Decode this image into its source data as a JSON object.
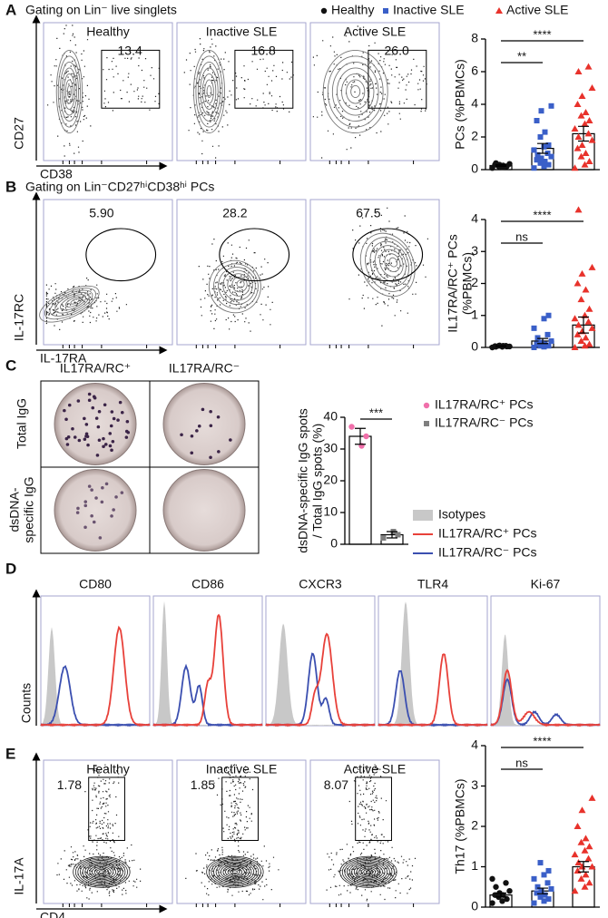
{
  "panel_labels": [
    "A",
    "B",
    "C",
    "D",
    "E"
  ],
  "panel_a": {
    "subtitle": "Gating on Lin⁻ live singlets",
    "plots": [
      {
        "title": "Healthy",
        "gate": "13.4"
      },
      {
        "title": "Inactive SLE",
        "gate": "16.8"
      },
      {
        "title": "Active SLE",
        "gate": "26.0"
      }
    ],
    "y_axis": "CD27",
    "x_axis": "CD38"
  },
  "panel_b": {
    "subtitle": "Gating on Lin⁻CD27ʰⁱCD38ʰⁱ PCs",
    "plots": [
      {
        "gate": "5.90"
      },
      {
        "gate": "28.2"
      },
      {
        "gate": "67.5"
      }
    ],
    "y_axis": "IL-17RC",
    "x_axis": "IL-17RA"
  },
  "panel_c": {
    "columns": [
      "IL17RA/RC⁺",
      "IL17RA/RC⁻"
    ],
    "rows": [
      [
        "Total IgG"
      ],
      [
        "dsDNA-",
        "specific IgG"
      ]
    ]
  },
  "panel_d": {
    "markers": [
      "CD80",
      "CD86",
      "CXCR3",
      "TLR4",
      "Ki-67"
    ],
    "y_axis": "Counts",
    "legend": [
      {
        "name": "Isotypes",
        "color": "#c8c8c8"
      },
      {
        "name": "IL17RA/RC⁺ PCs",
        "color": "#e8413a"
      },
      {
        "name": "IL17RA/RC⁻ PCs",
        "color": "#3b4fb0"
      }
    ]
  },
  "panel_e": {
    "plots": [
      {
        "title": "Healthy",
        "gate": "1.78"
      },
      {
        "title": "Inactive SLE",
        "gate": "1.85"
      },
      {
        "title": "Active SLE",
        "gate": "8.07"
      }
    ],
    "y_axis": "IL-17A",
    "x_axis": "CD4"
  },
  "chart_data": [
    {
      "type": "bar",
      "y_label": "PCs (%PBMCs)",
      "ylim": [
        0,
        8
      ],
      "yticks": [
        0,
        2,
        4,
        6,
        8
      ],
      "annotations": [
        "**",
        "****"
      ],
      "series": [
        {
          "name": "Healthy",
          "color": "#111111",
          "marker": "circle",
          "mean": 0.25,
          "sem": 0.04,
          "values": [
            0.1,
            0.15,
            0.2,
            0.2,
            0.25,
            0.3,
            0.3,
            0.35,
            0.4,
            0.2
          ]
        },
        {
          "name": "Inactive SLE",
          "color": "#3a5fc8",
          "marker": "square",
          "mean": 1.3,
          "sem": 0.3,
          "values": [
            0.1,
            0.2,
            0.3,
            0.4,
            0.5,
            0.6,
            0.7,
            0.8,
            0.9,
            1.0,
            1.2,
            1.4,
            1.5,
            2.0,
            2.3,
            3.0,
            3.6,
            3.9
          ]
        },
        {
          "name": "Active SLE",
          "color": "#e8322b",
          "marker": "triangle",
          "mean": 2.2,
          "sem": 0.45,
          "values": [
            0.1,
            0.3,
            0.5,
            0.8,
            1.0,
            1.3,
            1.5,
            1.8,
            2.0,
            2.2,
            2.5,
            2.8,
            3.0,
            3.3,
            3.5,
            4.0,
            4.5,
            5.0,
            6.0,
            6.3
          ]
        }
      ]
    },
    {
      "type": "bar",
      "y_label": [
        "IL17RA/RC⁺ PCs",
        "(%PBMCs)"
      ],
      "ylim": [
        0,
        4
      ],
      "yticks": [
        0,
        1,
        2,
        3,
        4
      ],
      "annotations": [
        "ns",
        "****"
      ],
      "series": [
        {
          "color": "#111111",
          "marker": "circle",
          "mean": 0.04,
          "sem": 0.01,
          "values": [
            0,
            0.02,
            0.03,
            0.05,
            0.05,
            0.04,
            0.06,
            0.03,
            0.02,
            0.05
          ]
        },
        {
          "color": "#3a5fc8",
          "marker": "square",
          "mean": 0.2,
          "sem": 0.08,
          "values": [
            0,
            0.02,
            0.05,
            0.05,
            0.1,
            0.1,
            0.15,
            0.2,
            0.3,
            0.4,
            0.6,
            0.9,
            1.0
          ]
        },
        {
          "color": "#e8322b",
          "marker": "triangle",
          "mean": 0.7,
          "sem": 0.25,
          "values": [
            0,
            0.05,
            0.1,
            0.2,
            0.3,
            0.4,
            0.5,
            0.6,
            0.7,
            0.8,
            0.9,
            1.0,
            1.2,
            1.5,
            1.8,
            2.0,
            2.3,
            2.5,
            4.3
          ]
        }
      ]
    },
    {
      "type": "bar",
      "y_label": [
        "dsDNA-specific IgG spots",
        "/ Total IgG spots (%)"
      ],
      "ylim": [
        0,
        40
      ],
      "yticks": [
        0,
        10,
        20,
        30,
        40
      ],
      "annotations": [
        "***"
      ],
      "series": [
        {
          "name": "IL17RA/RC⁺ PCs",
          "color": "#f06faa",
          "marker": "circle",
          "mean": 34,
          "sem": 2.5,
          "values": [
            37,
            31,
            34
          ]
        },
        {
          "name": "IL17RA/RC⁻ PCs",
          "color": "#7f7f7f",
          "marker": "square",
          "mean": 3,
          "sem": 1,
          "values": [
            2,
            4,
            3
          ]
        }
      ]
    },
    {
      "type": "bar",
      "y_label": "Th17 (%PBMCs)",
      "ylim": [
        0,
        4
      ],
      "yticks": [
        0,
        1,
        2,
        3,
        4
      ],
      "annotations": [
        "ns",
        "****"
      ],
      "series": [
        {
          "color": "#111111",
          "marker": "circle",
          "mean": 0.3,
          "sem": 0.05,
          "values": [
            0.1,
            0.15,
            0.2,
            0.25,
            0.3,
            0.3,
            0.35,
            0.4,
            0.5,
            0.6,
            0.7
          ]
        },
        {
          "color": "#3a5fc8",
          "marker": "square",
          "mean": 0.4,
          "sem": 0.07,
          "values": [
            0.1,
            0.15,
            0.2,
            0.25,
            0.3,
            0.35,
            0.4,
            0.45,
            0.5,
            0.6,
            0.7,
            0.8,
            0.9,
            1.1
          ]
        },
        {
          "color": "#e8322b",
          "marker": "triangle",
          "mean": 1.0,
          "sem": 0.13,
          "values": [
            0.4,
            0.5,
            0.6,
            0.7,
            0.8,
            0.9,
            1.0,
            1.0,
            1.1,
            1.2,
            1.3,
            1.4,
            1.5,
            1.6,
            1.7,
            2.0,
            2.4,
            2.7
          ]
        }
      ]
    }
  ]
}
